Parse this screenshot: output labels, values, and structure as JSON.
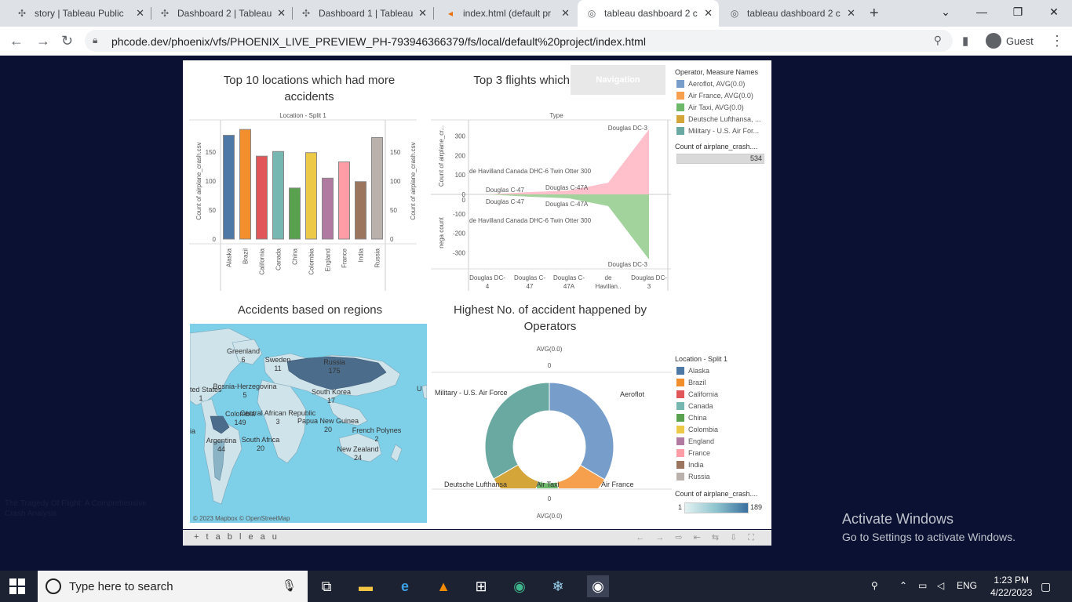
{
  "browser": {
    "tabs": [
      {
        "title": "story | Tableau Public",
        "icon": "tableau-icon",
        "active": false
      },
      {
        "title": "Dashboard 2 | Tableau",
        "icon": "tableau-icon",
        "active": false
      },
      {
        "title": "Dashboard 1 | Tableau",
        "icon": "tableau-icon",
        "active": false
      },
      {
        "title": "index.html (default pr",
        "icon": "phcode-icon",
        "active": false
      },
      {
        "title": "tableau dashboard 2 c",
        "icon": "globe-icon",
        "active": true
      },
      {
        "title": "tableau dashboard 2 c",
        "icon": "globe-icon",
        "active": false
      }
    ],
    "url": "phcode.dev/phoenix/vfs/PHOENIX_LIVE_PREVIEW_PH-793946366379/fs/local/default%20project/index.html",
    "profile": "Guest"
  },
  "dashboard": {
    "navigation_button": "Navigation",
    "titles": {
      "top10": "Top 10 locations which had more accidents",
      "top3": "Top 3 flights which hav history",
      "regions": "Accidents based on regions",
      "operators": "Highest No. of accident happened by Operators"
    },
    "legend_operators": {
      "title": "Operator, Measure Names",
      "items": [
        {
          "label": "Aeroflot, AVG(0.0)",
          "color": "#779ecb"
        },
        {
          "label": "Air France, AVG(0.0)",
          "color": "#f6a04d"
        },
        {
          "label": "Air Taxi, AVG(0.0)",
          "color": "#6db86b"
        },
        {
          "label": "Deutsche Lufthansa, ...",
          "color": "#d4a63a"
        },
        {
          "label": "Military - U.S. Air For...",
          "color": "#6aa9a2"
        }
      ],
      "count_title": "Count of airplane_crash....",
      "count_value": "534"
    },
    "legend_locations": {
      "title": "Location - Split 1",
      "items": [
        {
          "label": "Alaska",
          "color": "#4e79a7"
        },
        {
          "label": "Brazil",
          "color": "#f28e2b"
        },
        {
          "label": "California",
          "color": "#e15759"
        },
        {
          "label": "Canada",
          "color": "#76b7b2"
        },
        {
          "label": "China",
          "color": "#59a14f"
        },
        {
          "label": "Colombia",
          "color": "#edc948"
        },
        {
          "label": "England",
          "color": "#b07aa1"
        },
        {
          "label": "France",
          "color": "#ff9da7"
        },
        {
          "label": "India",
          "color": "#9c755f"
        },
        {
          "label": "Russia",
          "color": "#bab0ac"
        }
      ],
      "count_title": "Count of airplane_crash....",
      "count_min": "1",
      "count_max": "189"
    },
    "map": {
      "attribution": "© 2023 Mapbox © OpenStreetMap",
      "labels": [
        {
          "name": "Greenland",
          "value": "6"
        },
        {
          "name": "Sweden",
          "value": "11"
        },
        {
          "name": "Russia",
          "value": "175"
        },
        {
          "name": "ted States",
          "value": "1"
        },
        {
          "name": "Bosnia-Herzegovina",
          "value": "5"
        },
        {
          "name": "South Korea",
          "value": "17"
        },
        {
          "name": "Colombia",
          "value": "149"
        },
        {
          "name": "Central African Republic",
          "value": "3"
        },
        {
          "name": "Papua New Guinea",
          "value": "20"
        },
        {
          "name": "French Polynes",
          "value": "2"
        },
        {
          "name": "Argentina",
          "value": "44"
        },
        {
          "name": "South Africa",
          "value": "20"
        },
        {
          "name": "New Zealand",
          "value": "24"
        },
        {
          "name": "ia",
          "value": ""
        },
        {
          "name": "U",
          "value": ""
        }
      ]
    },
    "story_caption": "The Tragedy Of Flight: A Comprehensive Crash Analysis",
    "footer_logo": "+ t a b l e a u"
  },
  "chart_data": [
    {
      "type": "bar",
      "title": "Top 10 locations which had more accidents",
      "header": "Location - Split 1",
      "ylabel": "Count of airplane_crash.csv",
      "y2label": "Count of airplane_crash.csv",
      "categories": [
        "Alaska",
        "Brazil",
        "California",
        "Canada",
        "China",
        "Colombia",
        "England",
        "France",
        "India",
        "Russia"
      ],
      "values": [
        179,
        189,
        143,
        151,
        88,
        149,
        105,
        133,
        99,
        175
      ],
      "colors": [
        "#4e79a7",
        "#f28e2b",
        "#e15759",
        "#76b7b2",
        "#59a14f",
        "#edc948",
        "#b07aa1",
        "#ff9da7",
        "#9c755f",
        "#bab0ac"
      ],
      "yticks": [
        0,
        50,
        100,
        150
      ],
      "ylim": [
        0,
        200
      ]
    },
    {
      "type": "area",
      "header": "Type",
      "ylabel_top": "Count of airplane_cr...",
      "ylabel_bottom": "nega count",
      "categories": [
        "Douglas DC-4",
        "Douglas C-47",
        "Douglas C-47A",
        "de Havillan..",
        "Douglas DC-3"
      ],
      "category_labels": [
        [
          "Douglas DC-",
          "4"
        ],
        [
          "Douglas C-",
          "47"
        ],
        [
          "Douglas C-",
          "47A"
        ],
        [
          "de",
          "Havillan.."
        ],
        [
          "Douglas DC-",
          "3"
        ]
      ],
      "series": [
        {
          "name": "Count of airplane_cr...",
          "values": [
            0,
            12,
            20,
            60,
            334
          ],
          "color": "#ffc0cb"
        },
        {
          "name": "nega count",
          "values": [
            0,
            -12,
            -20,
            -60,
            -334
          ],
          "color": "#a3d39c"
        }
      ],
      "yticks_top": [
        0,
        100,
        200,
        300
      ],
      "yticks_bottom": [
        0,
        -100,
        -200,
        -300
      ],
      "annotations_top": [
        "Douglas DC-3",
        "de Havilland Canada DHC-6 Twin Otter 300",
        "Douglas C-47",
        "Douglas C-47A"
      ],
      "annotations_bottom": [
        "Douglas C-47",
        "Douglas C-47A",
        "de Havilland Canada DHC-6 Twin Otter 300",
        "Douglas DC-3"
      ]
    },
    {
      "type": "pie",
      "title": "Highest No. of accident happened by Operators",
      "axis_label": "AVG(0.0)",
      "axis_value": "0",
      "slices": [
        {
          "label": "Aeroflot",
          "value": 179,
          "color": "#779ecb"
        },
        {
          "label": "Air France",
          "value": 70,
          "color": "#f6a04d"
        },
        {
          "label": "Air Taxi",
          "value": 44,
          "color": "#6db86b"
        },
        {
          "label": "Deutsche Lufthansa",
          "value": 63,
          "color": "#d4a63a"
        },
        {
          "label": "Military - U.S. Air Force",
          "value": 178,
          "color": "#6aa9a2"
        }
      ]
    }
  ],
  "overlay": {
    "activate_title": "Activate Windows",
    "activate_sub": "Go to Settings to activate Windows."
  },
  "taskbar": {
    "search_placeholder": "Type here to search",
    "language": "ENG",
    "time": "1:23 PM",
    "date": "4/22/2023"
  }
}
